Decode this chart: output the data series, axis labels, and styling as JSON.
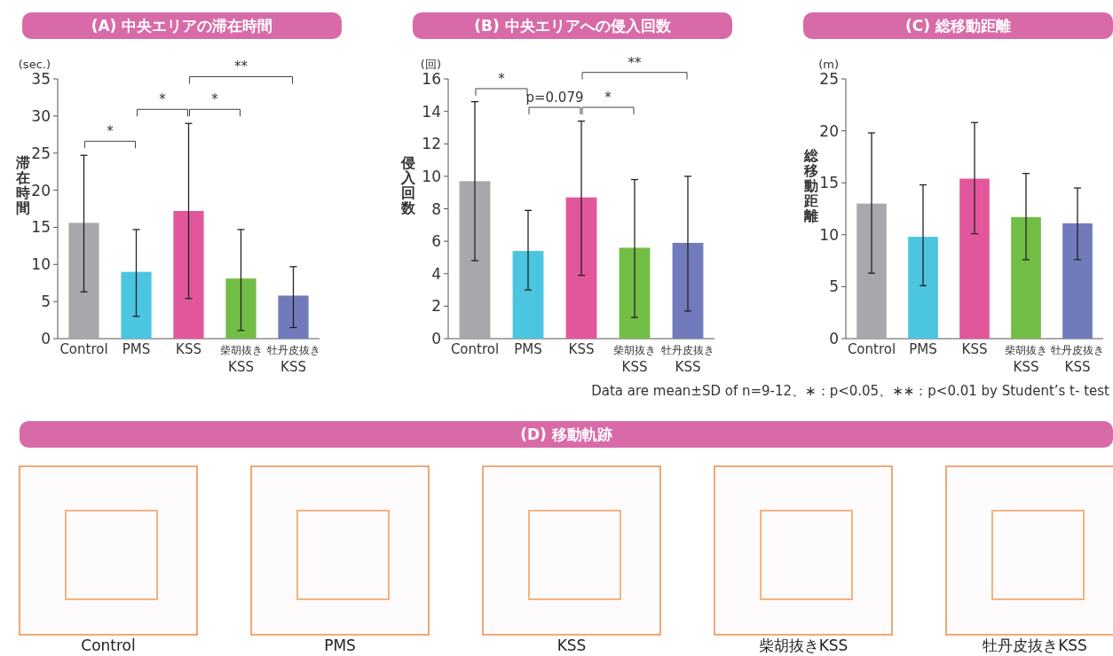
{
  "chart_data": [
    {
      "type": "bar",
      "title": "(A) 中央エリアの滞在時間",
      "ylabel": "滞在時間",
      "categories": [
        "Control",
        "PMS",
        "KSS",
        "柴胡抜き\nKSS",
        "牡丹皮抜き\nKSS"
      ],
      "values": [
        15.6,
        9.0,
        17.2,
        8.1,
        5.8
      ],
      "errors": [
        [
          6.3,
          24.7
        ],
        [
          3.0,
          14.7
        ],
        [
          5.4,
          29.0
        ],
        [
          1.1,
          14.7
        ],
        [
          1.5,
          9.7
        ]
      ],
      "colors": [
        "#a7a8ac",
        "#4bc5e0",
        "#e2579b",
        "#72bd45",
        "#717bbb"
      ],
      "ylim": [
        0,
        35
      ],
      "yticks": [
        0,
        5,
        10,
        15,
        20,
        25,
        30,
        35
      ],
      "grid": false,
      "annotations": [
        "(sec.)",
        "*",
        "*",
        "*",
        "**"
      ]
    },
    {
      "type": "bar",
      "title": "(B) 中央エリアへの侵入回数",
      "ylabel": "侵入回数",
      "categories": [
        "Control",
        "PMS",
        "KSS",
        "柴胡抜き\nKSS",
        "牡丹皮抜き\nKSS"
      ],
      "values": [
        9.7,
        5.4,
        8.7,
        5.6,
        5.9
      ],
      "errors": [
        [
          4.8,
          14.6
        ],
        [
          3.0,
          7.9
        ],
        [
          3.9,
          13.4
        ],
        [
          1.3,
          9.8
        ],
        [
          1.7,
          10.0
        ]
      ],
      "colors": [
        "#a7a8ac",
        "#4bc5e0",
        "#e2579b",
        "#72bd45",
        "#717bbb"
      ],
      "ylim": [
        0,
        16
      ],
      "yticks": [
        0,
        2,
        4,
        6,
        8,
        10,
        12,
        14,
        16
      ],
      "grid": false,
      "annotations": [
        "(回)",
        "*",
        "p=0.079",
        "*",
        "**"
      ]
    },
    {
      "type": "bar",
      "title": "(C) 総移動距離",
      "ylabel": "総移動距離",
      "categories": [
        "Control",
        "PMS",
        "KSS",
        "柴胡抜き\nKSS",
        "牡丹皮抜き\nKSS"
      ],
      "values": [
        13.0,
        9.8,
        15.4,
        11.7,
        11.1
      ],
      "errors": [
        [
          6.3,
          19.8
        ],
        [
          5.1,
          14.8
        ],
        [
          10.1,
          20.8
        ],
        [
          7.6,
          15.9
        ],
        [
          7.6,
          14.5
        ]
      ],
      "colors": [
        "#a7a8ac",
        "#4bc5e0",
        "#e2579b",
        "#72bd45",
        "#717bbb"
      ],
      "ylim": [
        0,
        25
      ],
      "yticks": [
        0,
        5,
        10,
        15,
        20,
        25
      ],
      "grid": false,
      "annotations": [
        "(m)",
        "Data are mean±SD of n=9-12、∗：p<0.05、∗∗：p<0.01 by Student’s t- test"
      ]
    },
    {
      "type": "other",
      "title": "(D) 移動軌跡",
      "annotations": [
        "Control",
        "PMS",
        "KSS",
        "柴胡抜きKSS",
        "牡丹皮抜きKSS"
      ]
    }
  ]
}
